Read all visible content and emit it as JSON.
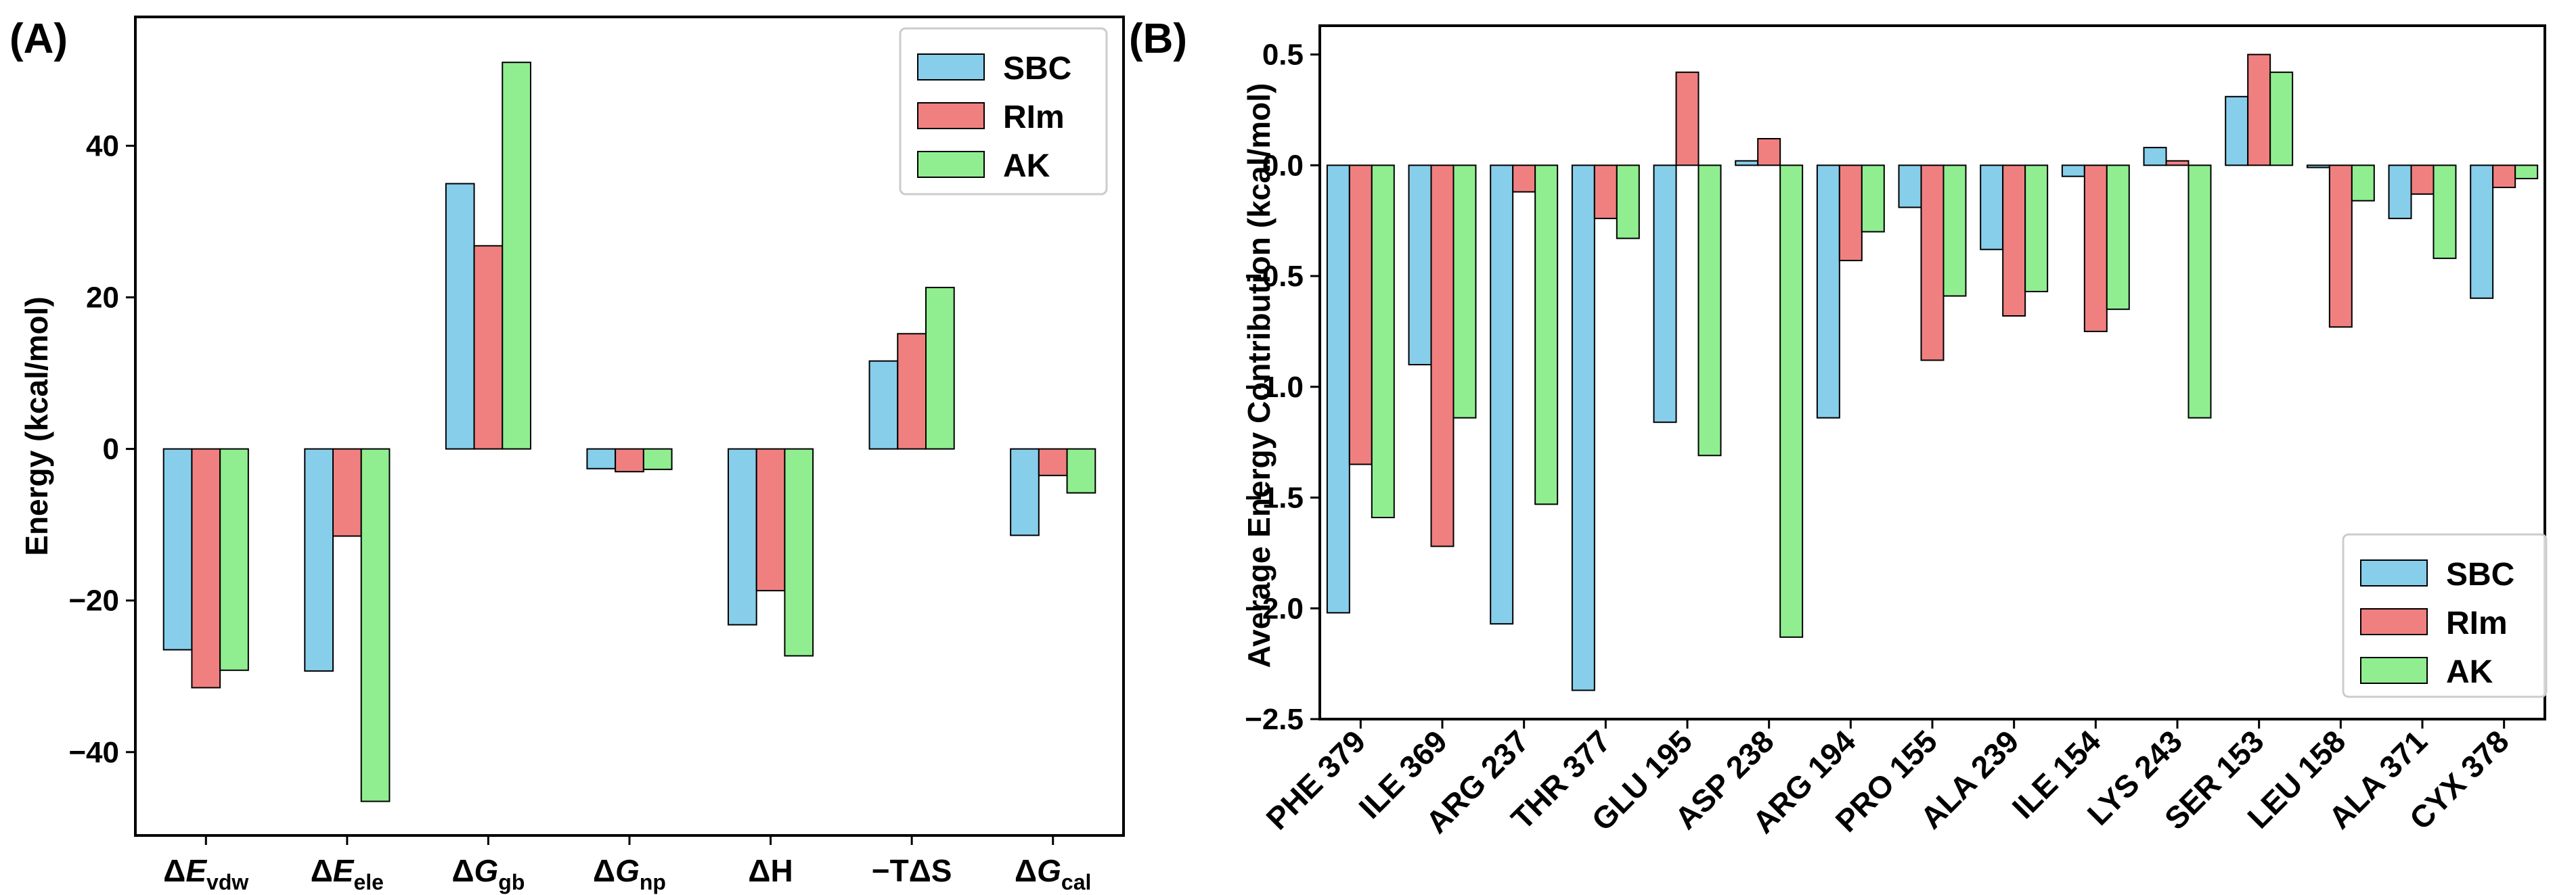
{
  "chart_data": [
    {
      "panel": "(A)",
      "type": "bar",
      "ylabel": "Energy (kcal/mol)",
      "xlabel": "",
      "ylim": [
        -51,
        57
      ],
      "yticks": [
        -40,
        -20,
        0,
        20,
        40
      ],
      "ytick_labels": [
        "−40",
        "−20",
        "0",
        "20",
        "40"
      ],
      "categories": [
        {
          "main": "ΔE",
          "sub": "vdw",
          "italic": true
        },
        {
          "main": "ΔE",
          "sub": "ele",
          "italic": true
        },
        {
          "main": "ΔG",
          "sub": "gb",
          "italic": true
        },
        {
          "main": "ΔG",
          "sub": "np",
          "italic": true
        },
        {
          "main": "ΔH",
          "sub": "",
          "italic": false
        },
        {
          "main": "−TΔS",
          "sub": "",
          "italic": false
        },
        {
          "main": "ΔG",
          "sub": "cal",
          "italic": true
        }
      ],
      "series": [
        {
          "name": "SBC",
          "color": "#87ceeb",
          "values": [
            -26.5,
            -29.3,
            35.0,
            -2.6,
            -23.2,
            11.6,
            -11.4
          ]
        },
        {
          "name": "RIm",
          "color": "#f08080",
          "values": [
            -31.5,
            -11.5,
            26.8,
            -3.0,
            -18.7,
            15.2,
            -3.5
          ]
        },
        {
          "name": "AK",
          "color": "#90ee90",
          "values": [
            -29.2,
            -46.5,
            51.0,
            -2.7,
            -27.3,
            21.3,
            -5.8
          ]
        }
      ],
      "legend": {
        "placement": "top-right",
        "entries": [
          "SBC",
          "RIm",
          "AK"
        ]
      }
    },
    {
      "panel": "(B)",
      "type": "bar",
      "ylabel": "Average Energy Contribution (kcal/mol)",
      "xlabel": "",
      "ylim": [
        -2.5,
        0.63
      ],
      "yticks": [
        -2.5,
        -2.0,
        -1.5,
        -1.0,
        -0.5,
        0.0,
        0.5
      ],
      "ytick_labels": [
        "−2.5",
        "−2.0",
        "−1.5",
        "−1.0",
        "−0.5",
        "0.0",
        "0.5"
      ],
      "categories": [
        "PHE 379",
        "ILE 369",
        "ARG 237",
        "THR 377",
        "GLU 195",
        "ASP 238",
        "ARG 194",
        "PRO 155",
        "ALA 239",
        "ILE 154",
        "LYS 243",
        "SER 153",
        "LEU 158",
        "ALA 371",
        "CYX 378"
      ],
      "series": [
        {
          "name": "SBC",
          "color": "#87ceeb",
          "values": [
            -2.02,
            -0.9,
            -2.07,
            -2.37,
            -1.16,
            0.02,
            -1.14,
            -0.19,
            -0.38,
            -0.05,
            0.08,
            0.31,
            -0.01,
            -0.24,
            -0.6
          ]
        },
        {
          "name": "RIm",
          "color": "#f08080",
          "values": [
            -1.35,
            -1.72,
            -0.12,
            -0.24,
            0.42,
            0.12,
            -0.43,
            -0.88,
            -0.68,
            -0.75,
            0.02,
            0.5,
            -0.73,
            -0.13,
            -0.1
          ]
        },
        {
          "name": "AK",
          "color": "#90ee90",
          "values": [
            -1.59,
            -1.14,
            -1.53,
            -0.33,
            -1.31,
            -2.13,
            -0.3,
            -0.59,
            -0.57,
            -0.65,
            -1.14,
            0.42,
            -0.16,
            -0.42,
            -0.06
          ]
        }
      ],
      "legend": {
        "placement": "bottom-right",
        "entries": [
          "SBC",
          "RIm",
          "AK"
        ]
      }
    }
  ]
}
